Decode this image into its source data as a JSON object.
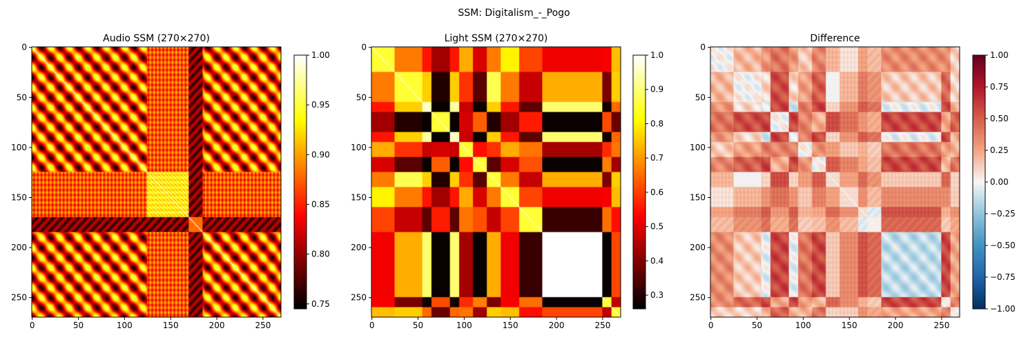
{
  "figure": {
    "suptitle": "SSM: Digitalism_-_Pogo"
  },
  "chart_data": [
    {
      "type": "heatmap",
      "title": "Audio SSM (270×270)",
      "size": 270,
      "colormap": "hot",
      "clim": [
        0.745,
        1.0
      ],
      "x_ticks": [
        0,
        50,
        100,
        150,
        200,
        250
      ],
      "y_ticks": [
        0,
        50,
        100,
        150,
        200,
        250
      ],
      "colorbar_ticks": [
        0.75,
        0.8,
        0.85,
        0.9,
        0.95,
        1.0
      ],
      "colorbar_tick_labels": [
        "0.75",
        "0.80",
        "0.85",
        "0.90",
        "0.95",
        "1.00"
      ],
      "sections": [
        {
          "start": 0,
          "end": 125,
          "kind": "periodic"
        },
        {
          "start": 125,
          "end": 170,
          "kind": "plateau"
        },
        {
          "start": 170,
          "end": 185,
          "kind": "break"
        },
        {
          "start": 185,
          "end": 270,
          "kind": "periodic"
        }
      ],
      "period": 20,
      "diagonal_value": 1.0
    },
    {
      "type": "heatmap",
      "title": "Light SSM (270×270)",
      "size": 270,
      "colormap": "hot",
      "clim": [
        0.26,
        1.0
      ],
      "x_ticks": [
        0,
        50,
        100,
        150,
        200,
        250
      ],
      "y_ticks": [
        0,
        50,
        100,
        150,
        200,
        250
      ],
      "colorbar_ticks": [
        0.3,
        0.4,
        0.5,
        0.6,
        0.7,
        0.8,
        0.9,
        1.0
      ],
      "colorbar_tick_labels": [
        "0.3",
        "0.4",
        "0.5",
        "0.6",
        "0.7",
        "0.8",
        "0.9",
        "1.0"
      ],
      "segments": [
        {
          "start": 0,
          "end": 25,
          "level": 0.62
        },
        {
          "start": 25,
          "end": 55,
          "level": 0.8
        },
        {
          "start": 55,
          "end": 65,
          "level": 0.95
        },
        {
          "start": 65,
          "end": 85,
          "level": 0.3
        },
        {
          "start": 85,
          "end": 95,
          "level": 0.95
        },
        {
          "start": 95,
          "end": 110,
          "level": 0.55
        },
        {
          "start": 110,
          "end": 125,
          "level": 0.35
        },
        {
          "start": 125,
          "end": 140,
          "level": 0.8
        },
        {
          "start": 140,
          "end": 160,
          "level": 0.62
        },
        {
          "start": 160,
          "end": 185,
          "level": 0.45
        },
        {
          "start": 185,
          "end": 250,
          "level": 1.0
        },
        {
          "start": 250,
          "end": 260,
          "level": 0.38
        },
        {
          "start": 260,
          "end": 270,
          "level": 0.7
        }
      ],
      "diagonal_value": 1.0
    },
    {
      "type": "heatmap",
      "title": "Difference",
      "size": 270,
      "colormap": "RdBu_r",
      "clim": [
        -1.0,
        1.0
      ],
      "x_ticks": [
        0,
        50,
        100,
        150,
        200,
        250
      ],
      "y_ticks": [
        0,
        50,
        100,
        150,
        200,
        250
      ],
      "colorbar_ticks": [
        -1.0,
        -0.75,
        -0.5,
        -0.25,
        0.0,
        0.25,
        0.5,
        0.75,
        1.0
      ],
      "colorbar_tick_labels": [
        "−1.00",
        "−0.75",
        "−0.50",
        "−0.25",
        "0.00",
        "0.25",
        "0.50",
        "0.75",
        "1.00"
      ],
      "definition": "audio minus light",
      "diagonal_value": 0.0
    }
  ]
}
